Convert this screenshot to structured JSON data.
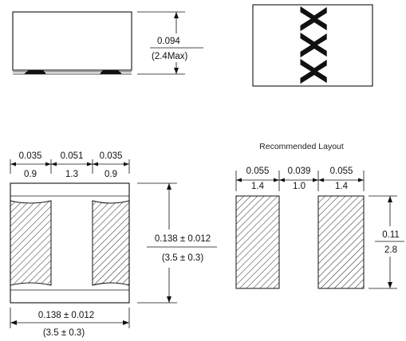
{
  "side_view": {
    "height_in": "0.094",
    "height_mm": "(2.4Max)"
  },
  "top_marking": {
    "marking": "XXX"
  },
  "bottom_view": {
    "top_dims_in": [
      "0.035",
      "0.051",
      "0.035"
    ],
    "top_dims_mm": [
      "0.9",
      "1.3",
      "0.9"
    ],
    "height_in": "0.138 ± 0.012",
    "height_mm": "(3.5 ± 0.3)",
    "width_in": "0.138 ± 0.012",
    "width_mm": "(3.5 ± 0.3)"
  },
  "layout": {
    "title": "Recommended Layout",
    "top_dims_in": [
      "0.055",
      "0.039",
      "0.055"
    ],
    "top_dims_mm": [
      "1.4",
      "1.0",
      "1.4"
    ],
    "height_in": "0.11",
    "height_mm": "2.8"
  }
}
